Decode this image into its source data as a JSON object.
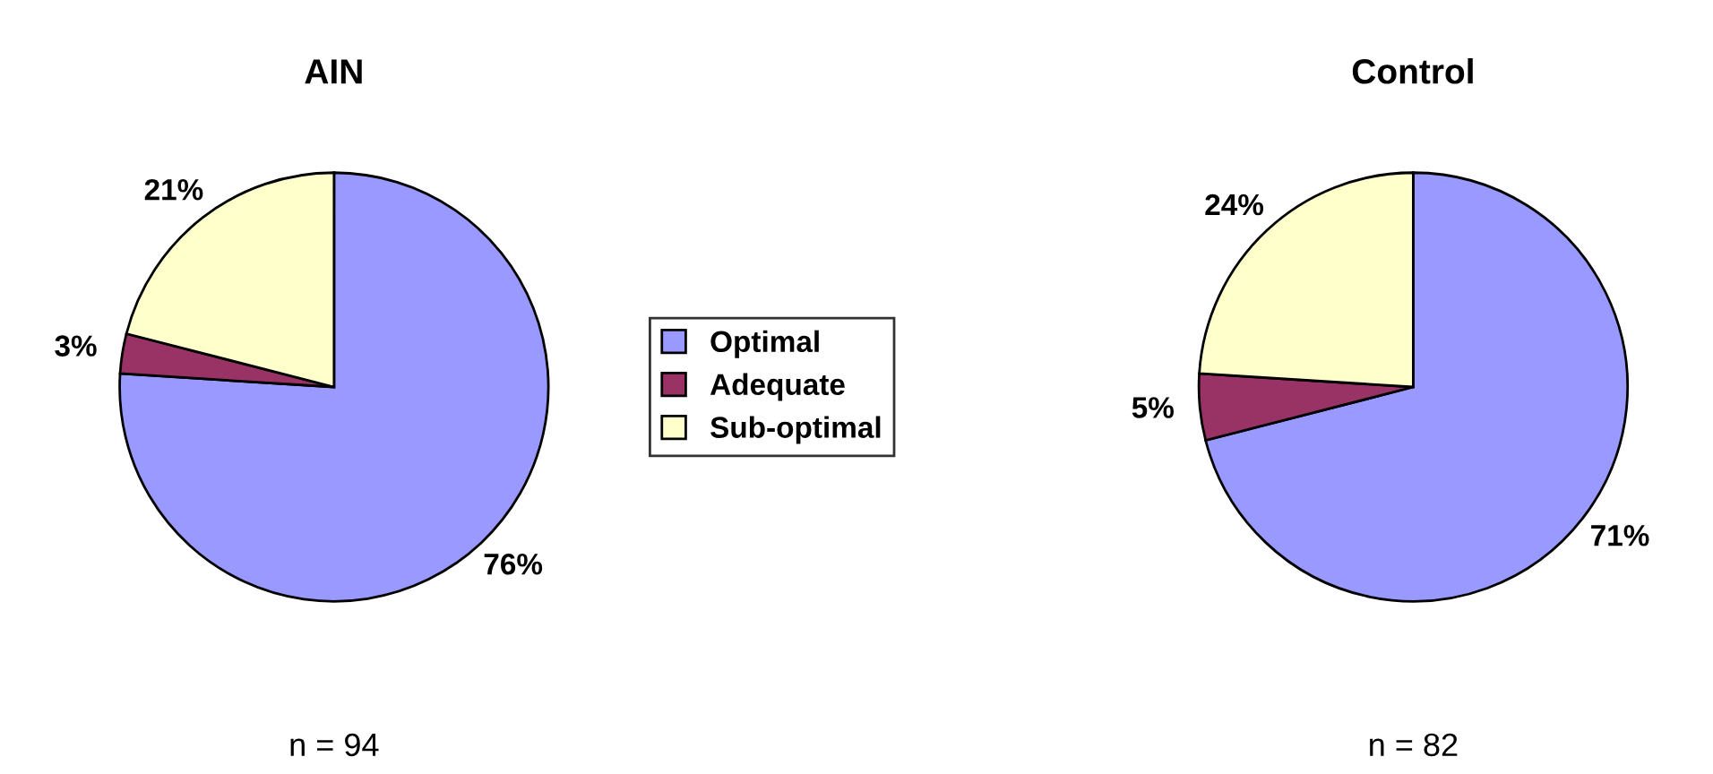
{
  "chart_data": [
    {
      "type": "pie",
      "title": "AIN",
      "categories": [
        "Optimal",
        "Adequate",
        "Sub-optimal"
      ],
      "values": [
        76,
        3,
        21
      ],
      "colors": [
        "#9999ff",
        "#993366",
        "#ffffcc"
      ],
      "value_labels": [
        "76%",
        "3%",
        "21%"
      ],
      "legend": "right",
      "annotations": [
        "n = 94"
      ]
    },
    {
      "type": "pie",
      "title": "Control",
      "categories": [
        null,
        null,
        null
      ],
      "values": [
        71,
        5,
        24
      ],
      "colors": [
        "#9999ff",
        "#993366",
        "#ffffcc"
      ],
      "value_labels": [
        "71%",
        "5%",
        "24%"
      ],
      "annotations": [
        "n = 82"
      ]
    }
  ]
}
